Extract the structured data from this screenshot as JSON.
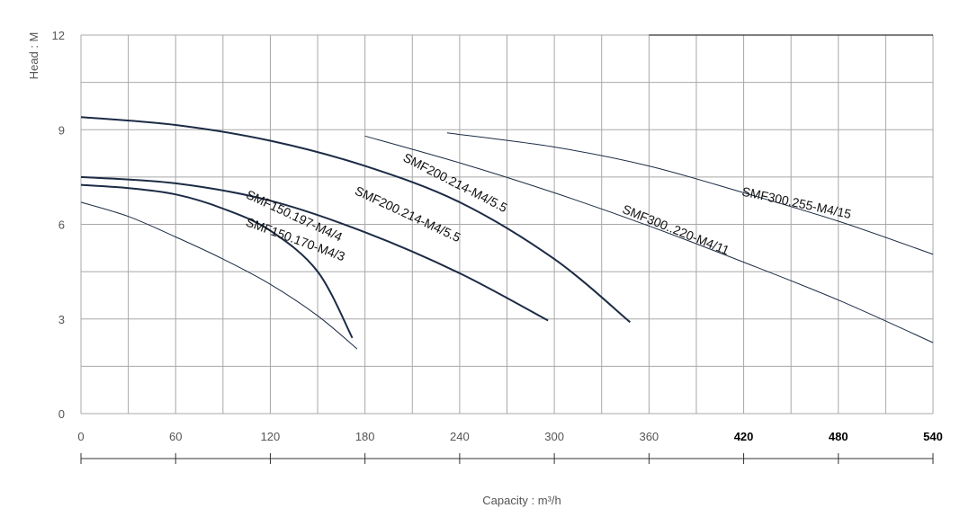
{
  "chart_data": {
    "type": "line",
    "xlabel": "Capacity : m³/h",
    "ylabel": "Head : M",
    "xlim": [
      0,
      540
    ],
    "ylim": [
      0,
      12
    ],
    "x_ticks": [
      "0",
      "60",
      "120",
      "180",
      "240",
      "300",
      "360",
      "420",
      "480",
      "540"
    ],
    "y_ticks": [
      "0",
      "3",
      "6",
      "9",
      "12"
    ],
    "grid": true,
    "series": [
      {
        "name": "SMF150.170-M4/3",
        "style": "thin",
        "points": [
          [
            0,
            6.7
          ],
          [
            30,
            6.25
          ],
          [
            60,
            5.6
          ],
          [
            90,
            4.9
          ],
          [
            120,
            4.1
          ],
          [
            150,
            3.1
          ],
          [
            175,
            2.05
          ]
        ],
        "label_at": [
          135,
          5.4
        ],
        "label_angle": 20
      },
      {
        "name": "SMF150.197-M4/4",
        "style": "thick",
        "points": [
          [
            0,
            7.25
          ],
          [
            30,
            7.15
          ],
          [
            60,
            6.95
          ],
          [
            90,
            6.5
          ],
          [
            120,
            5.8
          ],
          [
            150,
            4.5
          ],
          [
            172,
            2.4
          ]
        ],
        "label_at": [
          134,
          6.15
        ],
        "label_angle": 25
      },
      {
        "name": "SMF200.214-M4/5.5",
        "style": "thick",
        "points": [
          [
            0,
            7.5
          ],
          [
            60,
            7.3
          ],
          [
            120,
            6.75
          ],
          [
            180,
            5.75
          ],
          [
            240,
            4.45
          ],
          [
            296,
            2.95
          ]
        ],
        "label_at": [
          206,
          6.2
        ],
        "label_angle": 25
      },
      {
        "name": "SMF200.214-M4/5.5",
        "style": "thick",
        "points": [
          [
            0,
            9.4
          ],
          [
            60,
            9.15
          ],
          [
            120,
            8.65
          ],
          [
            180,
            7.85
          ],
          [
            240,
            6.7
          ],
          [
            300,
            4.9
          ],
          [
            348,
            2.9
          ]
        ],
        "label_at": [
          236,
          7.2
        ],
        "label_angle": 27
      },
      {
        "name": "SMF300..220-M4/11",
        "style": "thin",
        "points": [
          [
            180,
            8.8
          ],
          [
            240,
            7.95
          ],
          [
            300,
            7.0
          ],
          [
            360,
            5.95
          ],
          [
            420,
            4.8
          ],
          [
            480,
            3.6
          ],
          [
            540,
            2.25
          ]
        ],
        "label_at": [
          376,
          5.7
        ],
        "label_angle": 22
      },
      {
        "name": "SMF300.255-M4/15",
        "style": "thin",
        "points": [
          [
            232,
            8.9
          ],
          [
            300,
            8.45
          ],
          [
            360,
            7.85
          ],
          [
            420,
            7.0
          ],
          [
            480,
            6.1
          ],
          [
            540,
            5.05
          ]
        ],
        "label_at": [
          453,
          6.55
        ],
        "label_angle": 12
      }
    ],
    "colors": {
      "curve": "#1c2b45",
      "grid": "#a8a8a8",
      "axis_text": "#555555"
    }
  }
}
